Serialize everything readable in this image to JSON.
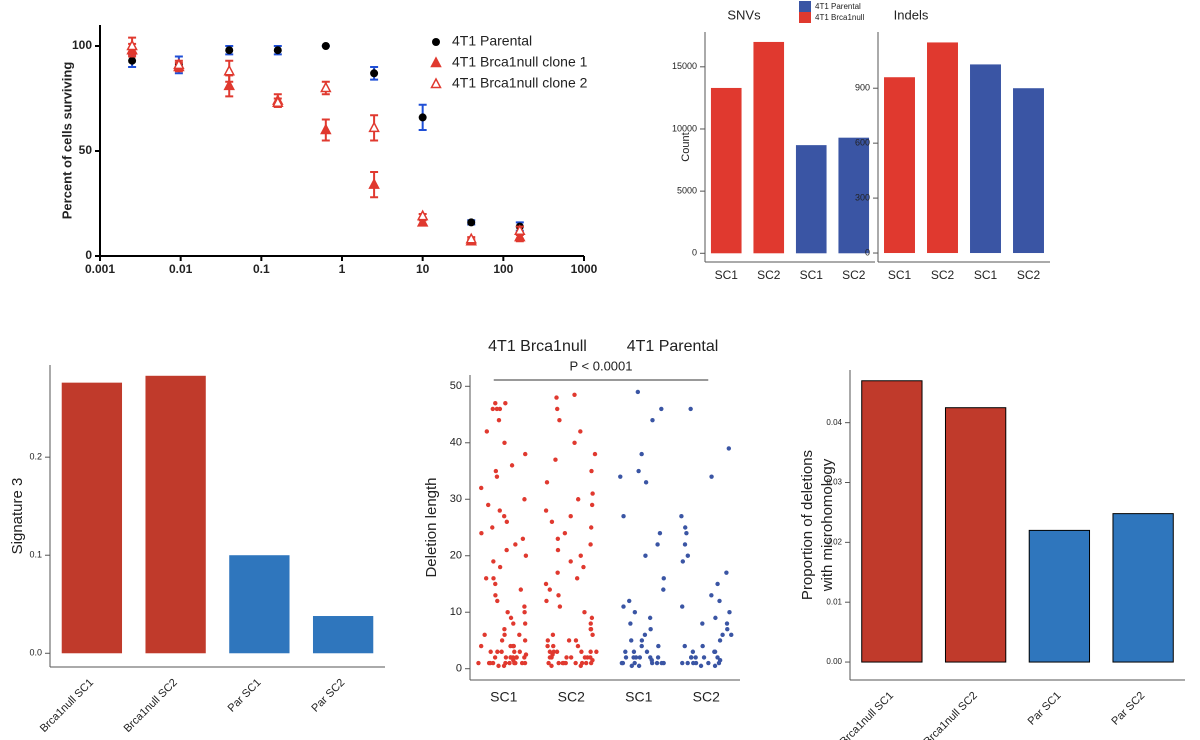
{
  "chart_data": [
    {
      "type": "scatter",
      "ylabel": "Percent of cells surviving",
      "xscale": "log",
      "xlim": [
        0.001,
        1000
      ],
      "xticks": [
        0.001,
        0.01,
        0.1,
        1,
        10,
        100,
        1000
      ],
      "ylim": [
        0,
        110
      ],
      "yticks": [
        0,
        50,
        100
      ],
      "series": [
        {
          "name": "4T1 Parental",
          "color": "#000000",
          "error_color": "#1f4fd6",
          "marker": "circle",
          "x": [
            0.0025,
            0.0095,
            0.04,
            0.16,
            0.63,
            2.5,
            10,
            40,
            160
          ],
          "values": [
            93,
            91,
            98,
            98,
            100,
            87,
            66,
            16,
            14
          ],
          "errors": [
            3,
            4,
            2,
            2,
            0,
            3,
            6,
            1,
            2
          ]
        },
        {
          "name": "4T1 Brca1null clone 1",
          "color": "#e0392f",
          "error_color": "#e0392f",
          "marker": "triangle",
          "x": [
            0.0025,
            0.0095,
            0.04,
            0.16,
            0.63,
            2.5,
            10,
            40,
            160
          ],
          "values": [
            98,
            90,
            81,
            74,
            60,
            34,
            16,
            7,
            9
          ],
          "errors": [
            3,
            2,
            5,
            3,
            5,
            6,
            1,
            1,
            2
          ]
        },
        {
          "name": "4T1 Brca1null clone 2",
          "color": "#e0392f",
          "error_color": "#e0392f",
          "marker": "triangle-open",
          "x": [
            0.0025,
            0.0095,
            0.04,
            0.16,
            0.63,
            2.5,
            10,
            40,
            160
          ],
          "values": [
            100,
            91,
            88,
            73,
            80,
            61,
            19,
            8,
            12
          ],
          "errors": [
            4,
            2,
            5,
            2,
            3,
            6,
            1,
            1,
            2
          ]
        }
      ]
    },
    {
      "type": "bar",
      "title": "SNVs",
      "ylabel": "Count",
      "categories": [
        "SC1",
        "SC2",
        "SC1",
        "SC2"
      ],
      "values": [
        13300,
        17000,
        8700,
        9300
      ],
      "colors": [
        "#e0392f",
        "#e0392f",
        "#3a55a4",
        "#3a55a4"
      ],
      "ylim": [
        -700,
        17800
      ],
      "yticks": [
        0,
        5000,
        10000,
        15000
      ],
      "legend": [
        {
          "name": "4T1 Parental",
          "color": "#3a55a4"
        },
        {
          "name": "4T1 Brca1null",
          "color": "#e0392f"
        }
      ]
    },
    {
      "type": "bar",
      "title": "Indels",
      "categories": [
        "SC1",
        "SC2",
        "SC1",
        "SC2"
      ],
      "values": [
        960,
        1150,
        1030,
        900
      ],
      "colors": [
        "#e0392f",
        "#e0392f",
        "#3a55a4",
        "#3a55a4"
      ],
      "ylim": [
        -49,
        1207
      ],
      "yticks": [
        0,
        300,
        600,
        900
      ]
    },
    {
      "type": "bar",
      "ylabel": "Signature 3",
      "categories": [
        "Brca1null SC1",
        "Brca1null SC2",
        "Par SC1",
        "Par SC2"
      ],
      "values": [
        0.276,
        0.283,
        0.1,
        0.038
      ],
      "colors": [
        "#c03a2b",
        "#c03a2b",
        "#2f76bd",
        "#2f76bd"
      ],
      "ylim": [
        -0.014,
        0.294
      ],
      "yticks": [
        {
          "value": 0,
          "label": "0.0"
        },
        0.1,
        0.2
      ]
    },
    {
      "type": "strip",
      "ylabel": "Deletion length",
      "group_labels": [
        "4T1 Brca1null",
        "4T1 Parental"
      ],
      "annotation": "P < 0.0001",
      "categories": [
        "SC1",
        "SC2",
        "SC1",
        "SC2"
      ],
      "colors": [
        "#e0392f",
        "#e0392f",
        "#3a55a4",
        "#3a55a4"
      ],
      "ylim": [
        -2,
        52
      ],
      "yticks": [
        0,
        10,
        20,
        30,
        40,
        50
      ],
      "values": [
        [
          1,
          1,
          1,
          1,
          1,
          1,
          2,
          2,
          2,
          2,
          2,
          2,
          3,
          3,
          3,
          3,
          4,
          4,
          4,
          5,
          5,
          6,
          6,
          7,
          8,
          8,
          9,
          10,
          10,
          11,
          12,
          13,
          14,
          15,
          16,
          16,
          18,
          19,
          20,
          21,
          22,
          23,
          24,
          25,
          26,
          27,
          28,
          29,
          30,
          32,
          34,
          35,
          36,
          38,
          40,
          42,
          44,
          46,
          46,
          46,
          47,
          47,
          1,
          1,
          2,
          3,
          1,
          2,
          4,
          6,
          0.5,
          1.5,
          2.5,
          0.5,
          1
        ],
        [
          1,
          1,
          1,
          1,
          1,
          1,
          2,
          2,
          2,
          2,
          2,
          3,
          3,
          3,
          3,
          4,
          4,
          5,
          5,
          6,
          6,
          7,
          7,
          8,
          9,
          10,
          11,
          12,
          13,
          14,
          15,
          16,
          17,
          18,
          19,
          20,
          21,
          22,
          23,
          24,
          25,
          26,
          27,
          28,
          29,
          30,
          31,
          33,
          35,
          37,
          38,
          40,
          42,
          44,
          46,
          48,
          48.5,
          1,
          2,
          3,
          1,
          2,
          4,
          0.5,
          1.5,
          2.5,
          0.5,
          1,
          5,
          3
        ],
        [
          1,
          1,
          1,
          1,
          1,
          2,
          2,
          2,
          2,
          3,
          3,
          4,
          4,
          5,
          6,
          7,
          8,
          9,
          10,
          11,
          12,
          14,
          16,
          20,
          22,
          24,
          27,
          33,
          34,
          35,
          38,
          44,
          46,
          49,
          1,
          2,
          1,
          3,
          2,
          5,
          0.5,
          1.5,
          0.5
        ],
        [
          1,
          1,
          1,
          1,
          2,
          2,
          2,
          3,
          3,
          4,
          4,
          5,
          6,
          7,
          8,
          9,
          10,
          11,
          12,
          13,
          15,
          17,
          19,
          20,
          22,
          24,
          25,
          27,
          34,
          39,
          46,
          1,
          2,
          3,
          1,
          2,
          6,
          8,
          0.5,
          1.5,
          0.5
        ]
      ]
    },
    {
      "type": "bar",
      "ylabel": [
        "Proportion of deletions",
        "with microhomology"
      ],
      "categories": [
        "Brca1null SC1",
        "Brca1null SC2",
        "Par SC1",
        "Par SC2"
      ],
      "values": [
        0.047,
        0.0425,
        0.022,
        0.0248
      ],
      "colors": [
        "#c03a2b",
        "#c03a2b",
        "#2f76bd",
        "#2f76bd"
      ],
      "edgecolor": "#000000",
      "ylim": [
        -0.003,
        0.0488
      ],
      "yticks": [
        {
          "value": 0,
          "label": "0.00"
        },
        0.01,
        0.02,
        0.03,
        0.04
      ]
    }
  ]
}
